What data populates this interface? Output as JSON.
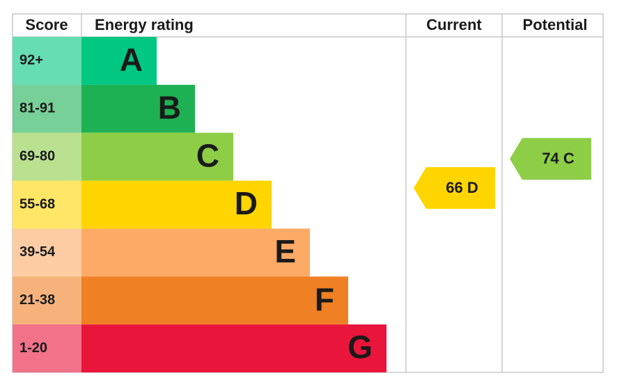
{
  "chart_data": {
    "type": "epc",
    "headers": [
      "Score",
      "Energy rating",
      "Current",
      "Potential"
    ],
    "bands": [
      {
        "score": "92+",
        "letter": "A",
        "color": "#00c781"
      },
      {
        "score": "81-91",
        "letter": "B",
        "color": "#1db154"
      },
      {
        "score": "69-80",
        "letter": "C",
        "color": "#8dce46"
      },
      {
        "score": "55-68",
        "letter": "D",
        "color": "#ffd500"
      },
      {
        "score": "39-54",
        "letter": "E",
        "color": "#fcaa65"
      },
      {
        "score": "21-38",
        "letter": "F",
        "color": "#ef8023"
      },
      {
        "score": "1-20",
        "letter": "G",
        "color": "#e9153b"
      }
    ],
    "current": {
      "value": 66,
      "label": "66 D"
    },
    "potential": {
      "value": 74,
      "label": "74 C"
    }
  }
}
